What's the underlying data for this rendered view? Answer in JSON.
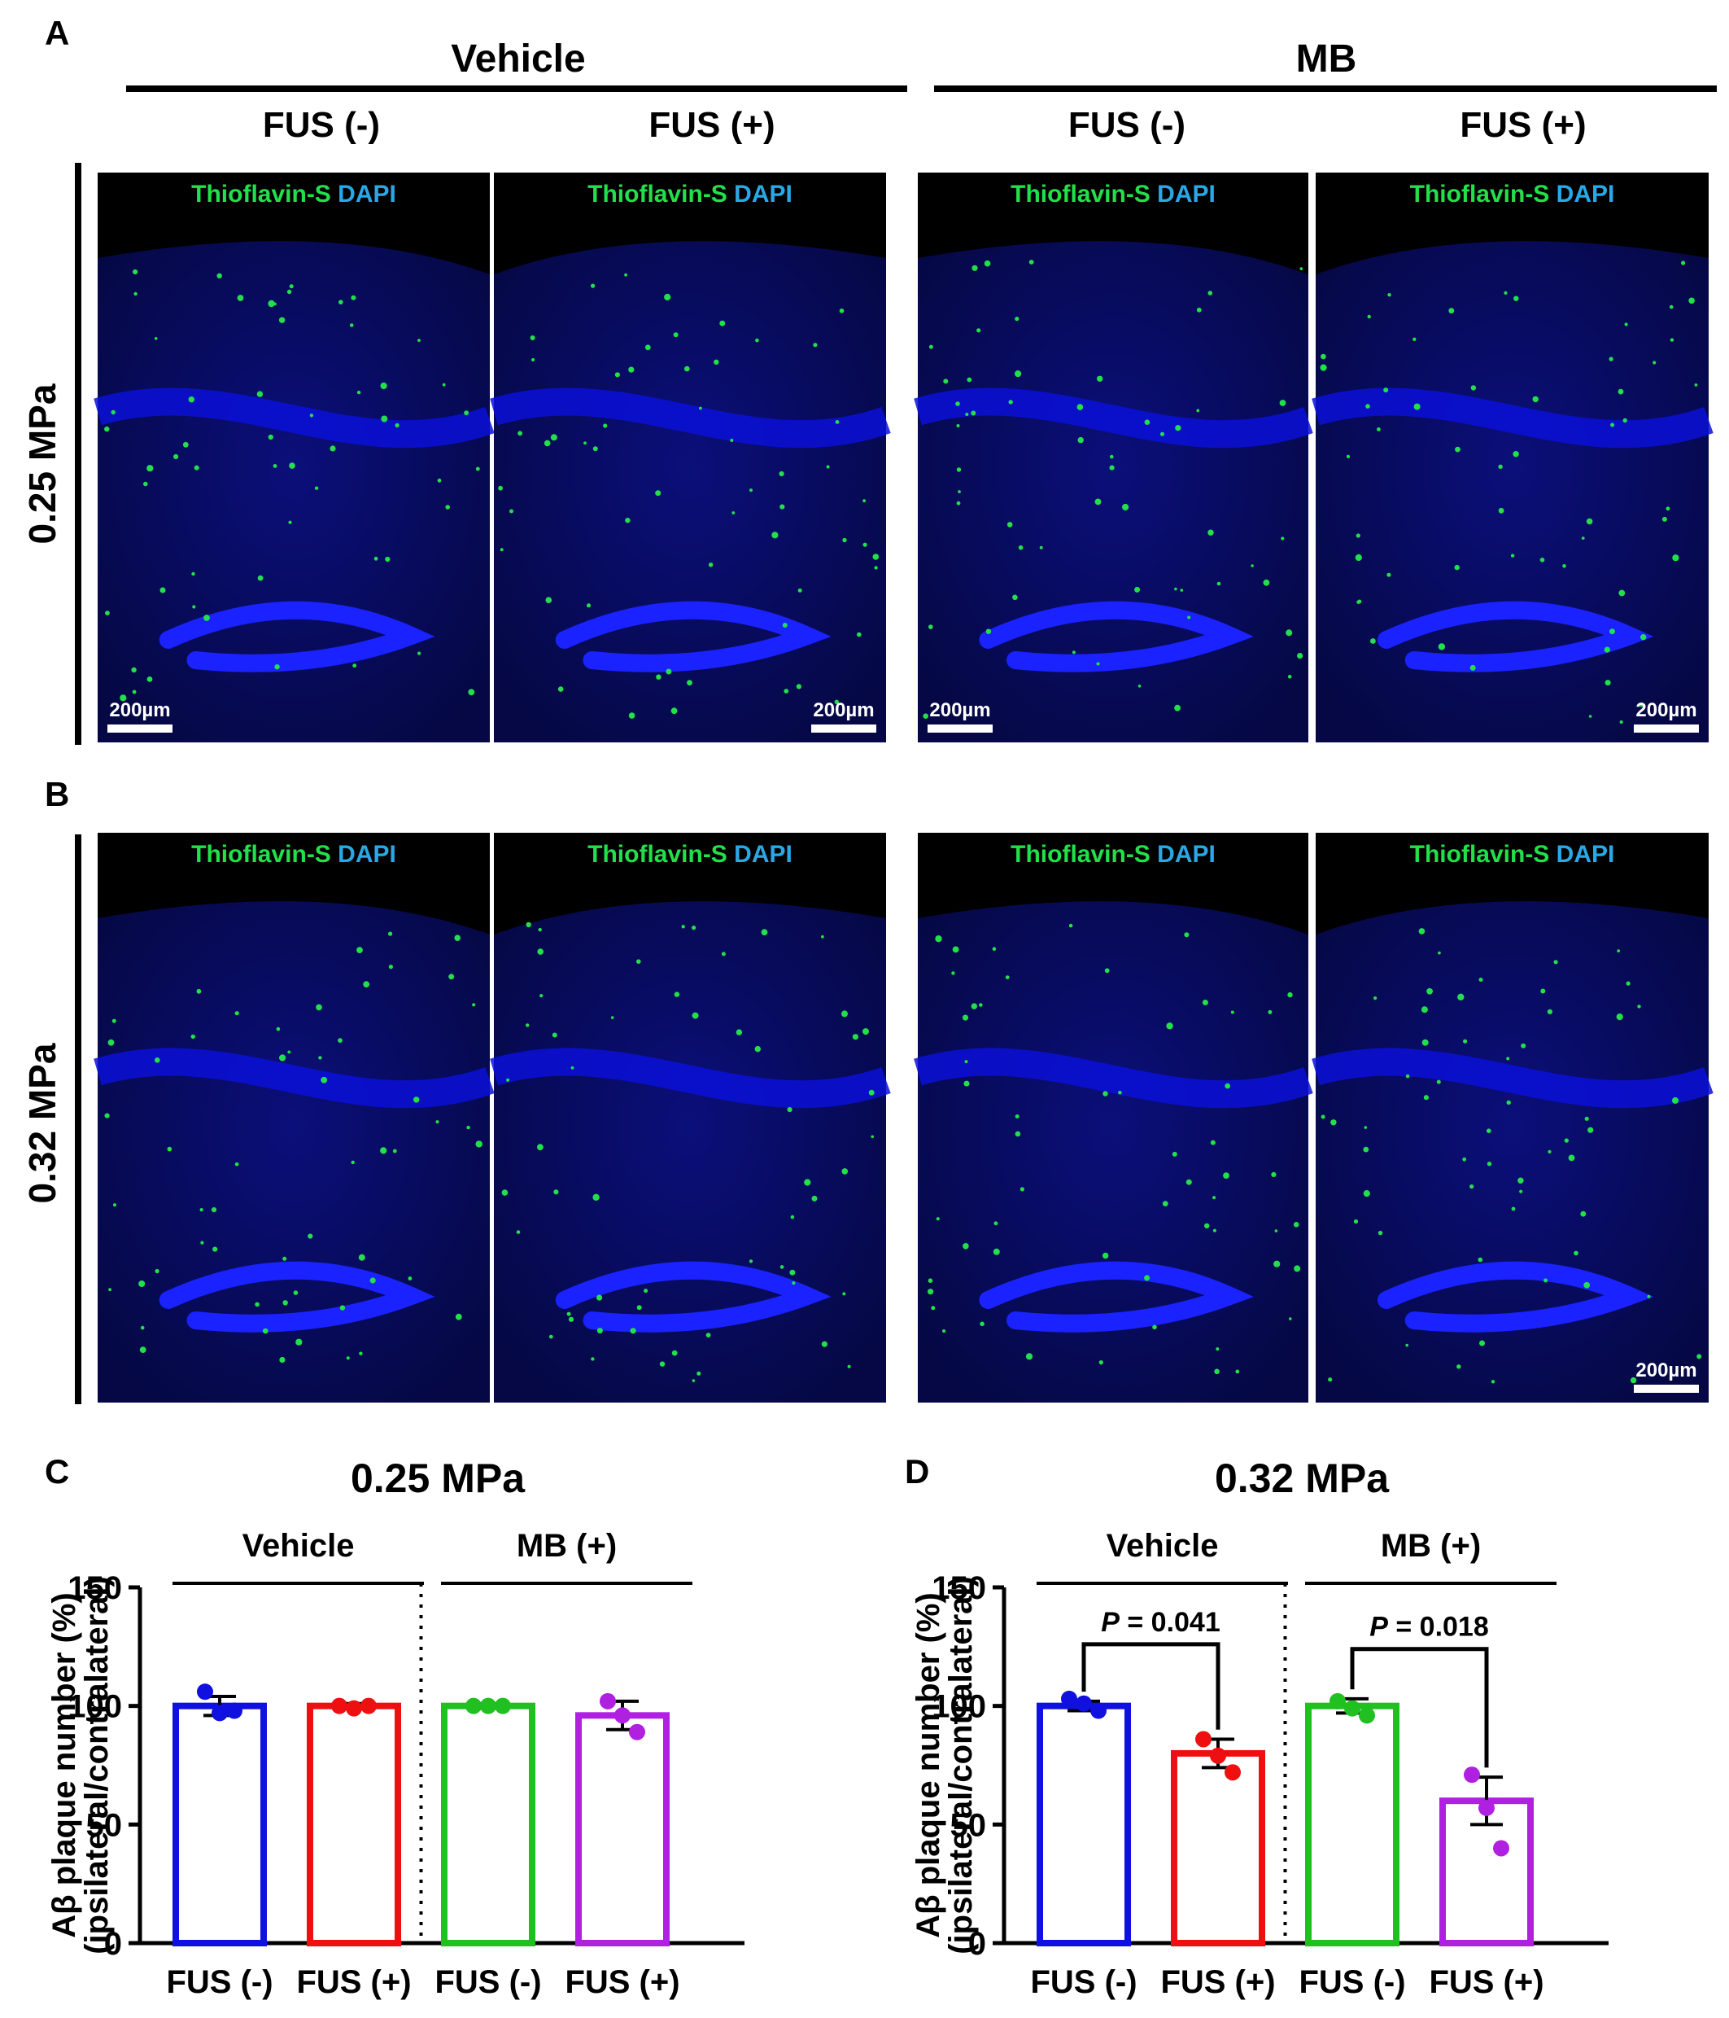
{
  "panel_labels": {
    "a": "A",
    "b": "B",
    "c": "C",
    "d": "D"
  },
  "groups": {
    "vehicle": "Vehicle",
    "mb": "MB"
  },
  "columns": [
    "FUS (-)",
    "FUS (+)",
    "FUS (-)",
    "FUS (+)"
  ],
  "rows": [
    "0.25 MPa",
    "0.32 MPa"
  ],
  "stain": {
    "thio": "Thioflavin-S",
    "dapi": "DAPI"
  },
  "scale_bar": "200µm",
  "colors": {
    "thio": "#22e04a",
    "dapi": "#29a8e6",
    "tissue": "#0a10d8",
    "vehicle_fus_neg": "#1010e0",
    "vehicle_fus_pos": "#ee1010",
    "mb_fus_neg": "#20c020",
    "mb_fus_pos": "#b020e0"
  },
  "chart_data": [
    {
      "type": "bar",
      "panel": "C",
      "title": "0.25 MPa",
      "ylabel_line1": "Aβ plaque number (%)",
      "ylabel_line2": "(ipsilateral/contralateral)",
      "ylim": [
        0,
        150
      ],
      "yticks": [
        "0",
        "50",
        "100",
        "150"
      ],
      "group_labels": [
        "Vehicle",
        "MB (+)"
      ],
      "categories": [
        "FUS (-)",
        "FUS (+)",
        "FUS (-)",
        "FUS (+)"
      ],
      "values": [
        100,
        100,
        100,
        96
      ],
      "errors": [
        4,
        1,
        1,
        6
      ],
      "points": [
        [
          106,
          97,
          98
        ],
        [
          100,
          99,
          100
        ],
        [
          100,
          100,
          100
        ],
        [
          102,
          96,
          89
        ]
      ],
      "annotations": []
    },
    {
      "type": "bar",
      "panel": "D",
      "title": "0.32 MPa",
      "ylabel_line1": "Aβ plaque number (%)",
      "ylabel_line2": "(ipsilateral/contralateral)",
      "ylim": [
        0,
        150
      ],
      "yticks": [
        "0",
        "50",
        "100",
        "150"
      ],
      "group_labels": [
        "Vehicle",
        "MB (+)"
      ],
      "categories": [
        "FUS (-)",
        "FUS (+)",
        "FUS (-)",
        "FUS (+)"
      ],
      "values": [
        100,
        80,
        100,
        60
      ],
      "errors": [
        2,
        6,
        3,
        10
      ],
      "points": [
        [
          103,
          101,
          98
        ],
        [
          86,
          79,
          72
        ],
        [
          102,
          99,
          96
        ],
        [
          71,
          57,
          40
        ]
      ],
      "annotations": [
        {
          "between": [
            0,
            1
          ],
          "text": "= 0.041",
          "y": 126
        },
        {
          "between": [
            2,
            3
          ],
          "text": "= 0.018",
          "y": 124
        }
      ]
    }
  ]
}
